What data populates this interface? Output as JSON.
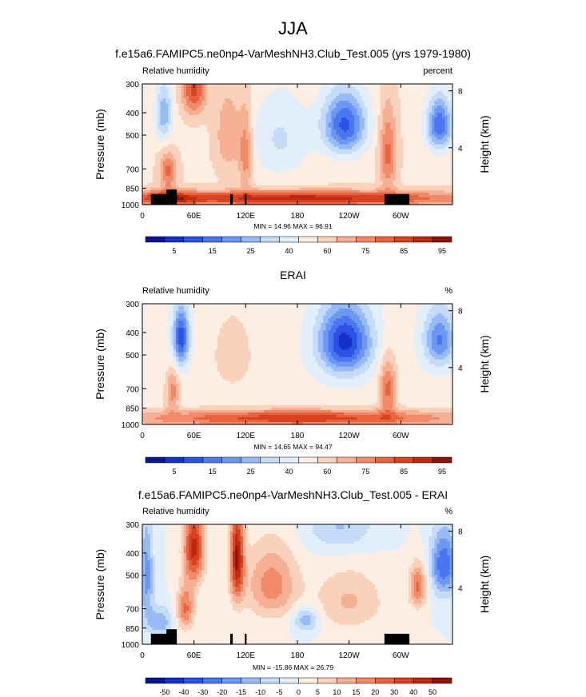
{
  "page": {
    "title": "JJA"
  },
  "palettes": {
    "abs": [
      "#08188c",
      "#1432c8",
      "#2a52e6",
      "#4a76f0",
      "#6c98f4",
      "#98baf6",
      "#c4dcf8",
      "#e2eefa",
      "#fdeee4",
      "#fad2bc",
      "#f6b094",
      "#f08a68",
      "#e8643e",
      "#d84220",
      "#bc2a10",
      "#8c1408"
    ],
    "diff": [
      "#08188c",
      "#1432c8",
      "#2a52e6",
      "#4a76f0",
      "#6c98f4",
      "#98baf6",
      "#c4dcf8",
      "#e2eefa",
      "#fdeee4",
      "#fad2bc",
      "#f6b094",
      "#f08a68",
      "#e8643e",
      "#d84220",
      "#bc2a10",
      "#8c1408"
    ]
  },
  "chart_data": [
    {
      "type": "heatmap",
      "title": "f.e15a6.FAMIPC5.ne0np4-VarMeshNH3.Club_Test.005 (yrs 1979-1980)",
      "left_label": "Relative humidity",
      "right_label": "percent",
      "ylabel": "Pressure (mb)",
      "ylabel_right": "Height (km)",
      "stats": "MIN =  14.96  MAX =  96.91",
      "x_ticks": [
        "0",
        "60E",
        "120E",
        "180",
        "120W",
        "60W"
      ],
      "x_tick_values": [
        0,
        60,
        120,
        180,
        240,
        300
      ],
      "xlim": [
        0,
        360
      ],
      "y_ticks": [
        "300",
        "400",
        "500",
        "700",
        "850",
        "1000"
      ],
      "y_tick_values": [
        300,
        400,
        500,
        700,
        850,
        1000
      ],
      "ylim": [
        1000,
        300
      ],
      "height_ticks": [
        "8",
        "4"
      ],
      "height_tick_values": [
        8,
        4
      ],
      "colorbar_labels": [
        "5",
        "15",
        "25",
        "40",
        "60",
        "75",
        "85",
        "95"
      ],
      "palette": "abs",
      "base": 55,
      "features": [
        {
          "lon": 25,
          "p": 400,
          "w": 10,
          "h": 120,
          "a": -22
        },
        {
          "lon": 60,
          "p": 320,
          "w": 14,
          "h": 80,
          "a": 28
        },
        {
          "lon": 100,
          "p": 500,
          "w": 15,
          "h": 200,
          "a": 14
        },
        {
          "lon": 120,
          "p": 600,
          "w": 8,
          "h": 250,
          "a": 18
        },
        {
          "lon": 160,
          "p": 520,
          "w": 35,
          "h": 220,
          "a": -12
        },
        {
          "lon": 235,
          "p": 450,
          "w": 25,
          "h": 140,
          "a": -38
        },
        {
          "lon": 285,
          "p": 600,
          "w": 10,
          "h": 250,
          "a": 22
        },
        {
          "lon": 345,
          "p": 450,
          "w": 15,
          "h": 120,
          "a": -35
        },
        {
          "lon": 30,
          "p": 720,
          "w": 10,
          "h": 130,
          "a": 22
        },
        {
          "lon": 180,
          "p": 940,
          "w": 200,
          "h": 70,
          "a": 36
        },
        {
          "lon": 30,
          "p": 940,
          "w": 30,
          "h": 70,
          "a": 22
        }
      ],
      "terrain": [
        {
          "lon0": 10,
          "lon1": 40,
          "p": 900
        },
        {
          "lon0": 28,
          "lon1": 40,
          "p": 860
        },
        {
          "lon0": 102,
          "lon1": 105,
          "p": 900
        },
        {
          "lon0": 119,
          "lon1": 121,
          "p": 900
        },
        {
          "lon0": 281,
          "lon1": 310,
          "p": 900
        }
      ],
      "min": 14.96,
      "max": 96.91
    },
    {
      "type": "heatmap",
      "title": "ERAI",
      "left_label": "Relative humidity",
      "right_label": "%",
      "ylabel": "Pressure (mb)",
      "ylabel_right": "Height (km)",
      "stats": "MIN =  14.65  MAX =  94.47",
      "x_ticks": [
        "0",
        "60E",
        "120E",
        "180",
        "120W",
        "60W"
      ],
      "x_tick_values": [
        0,
        60,
        120,
        180,
        240,
        300
      ],
      "xlim": [
        0,
        360
      ],
      "y_ticks": [
        "300",
        "400",
        "500",
        "700",
        "850",
        "1000"
      ],
      "y_tick_values": [
        300,
        400,
        500,
        700,
        850,
        1000
      ],
      "ylim": [
        1000,
        300
      ],
      "height_ticks": [
        "8",
        "4"
      ],
      "height_tick_values": [
        8,
        4
      ],
      "colorbar_labels": [
        "5",
        "15",
        "25",
        "40",
        "60",
        "75",
        "85",
        "95"
      ],
      "palette": "abs",
      "base": 52,
      "features": [
        {
          "lon": 45,
          "p": 420,
          "w": 9,
          "h": 120,
          "a": -38
        },
        {
          "lon": 105,
          "p": 500,
          "w": 25,
          "h": 200,
          "a": 8
        },
        {
          "lon": 235,
          "p": 440,
          "w": 30,
          "h": 150,
          "a": -42
        },
        {
          "lon": 345,
          "p": 430,
          "w": 18,
          "h": 120,
          "a": -28
        },
        {
          "lon": 35,
          "p": 720,
          "w": 8,
          "h": 150,
          "a": 20
        },
        {
          "lon": 285,
          "p": 700,
          "w": 10,
          "h": 200,
          "a": 25
        },
        {
          "lon": 180,
          "p": 940,
          "w": 200,
          "h": 80,
          "a": 33
        }
      ],
      "terrain": [],
      "min": 14.65,
      "max": 94.47
    },
    {
      "type": "heatmap",
      "title": "f.e15a6.FAMIPC5.ne0np4-VarMeshNH3.Club_Test.005 - ERAI",
      "left_label": "Relative humidity",
      "right_label": "%",
      "ylabel": "Pressure (mb)",
      "ylabel_right": "Height (km)",
      "stats": "MIN = -15.86  MAX =  26.79",
      "x_ticks": [
        "0",
        "60E",
        "120E",
        "180",
        "120W",
        "60W"
      ],
      "x_tick_values": [
        0,
        60,
        120,
        180,
        240,
        300
      ],
      "xlim": [
        0,
        360
      ],
      "y_ticks": [
        "300",
        "400",
        "500",
        "700",
        "850",
        "1000"
      ],
      "y_tick_values": [
        300,
        400,
        500,
        700,
        850,
        1000
      ],
      "ylim": [
        1000,
        300
      ],
      "height_ticks": [
        "8",
        "4"
      ],
      "height_tick_values": [
        8,
        4
      ],
      "colorbar_labels": [
        "-50",
        "-40",
        "-30",
        "-20",
        "-15",
        "-10",
        "-5",
        "0",
        "5",
        "10",
        "15",
        "20",
        "30",
        "40",
        "50"
      ],
      "palette": "diff",
      "base": 7.5,
      "features": [
        {
          "lon": 5,
          "p": 500,
          "w": 8,
          "h": 250,
          "a": -10
        },
        {
          "lon": 60,
          "p": 380,
          "w": 12,
          "h": 150,
          "a": 18
        },
        {
          "lon": 110,
          "p": 420,
          "w": 8,
          "h": 200,
          "a": 20
        },
        {
          "lon": 50,
          "p": 700,
          "w": 10,
          "h": 150,
          "a": 12
        },
        {
          "lon": 150,
          "p": 550,
          "w": 30,
          "h": 200,
          "a": 10
        },
        {
          "lon": 240,
          "p": 650,
          "w": 40,
          "h": 200,
          "a": 6
        },
        {
          "lon": 320,
          "p": 560,
          "w": 10,
          "h": 120,
          "a": 12
        },
        {
          "lon": 350,
          "p": 450,
          "w": 15,
          "h": 150,
          "a": -14
        },
        {
          "lon": 20,
          "p": 800,
          "w": 15,
          "h": 120,
          "a": -8
        },
        {
          "lon": 190,
          "p": 780,
          "w": 15,
          "h": 100,
          "a": -8
        },
        {
          "lon": 230,
          "p": 310,
          "w": 40,
          "h": 80,
          "a": -6
        }
      ],
      "terrain": [
        {
          "lon0": 10,
          "lon1": 40,
          "p": 900
        },
        {
          "lon0": 28,
          "lon1": 40,
          "p": 860
        },
        {
          "lon0": 102,
          "lon1": 105,
          "p": 900
        },
        {
          "lon0": 119,
          "lon1": 121,
          "p": 900
        },
        {
          "lon0": 281,
          "lon1": 310,
          "p": 900
        }
      ],
      "min": -15.86,
      "max": 26.79
    }
  ]
}
